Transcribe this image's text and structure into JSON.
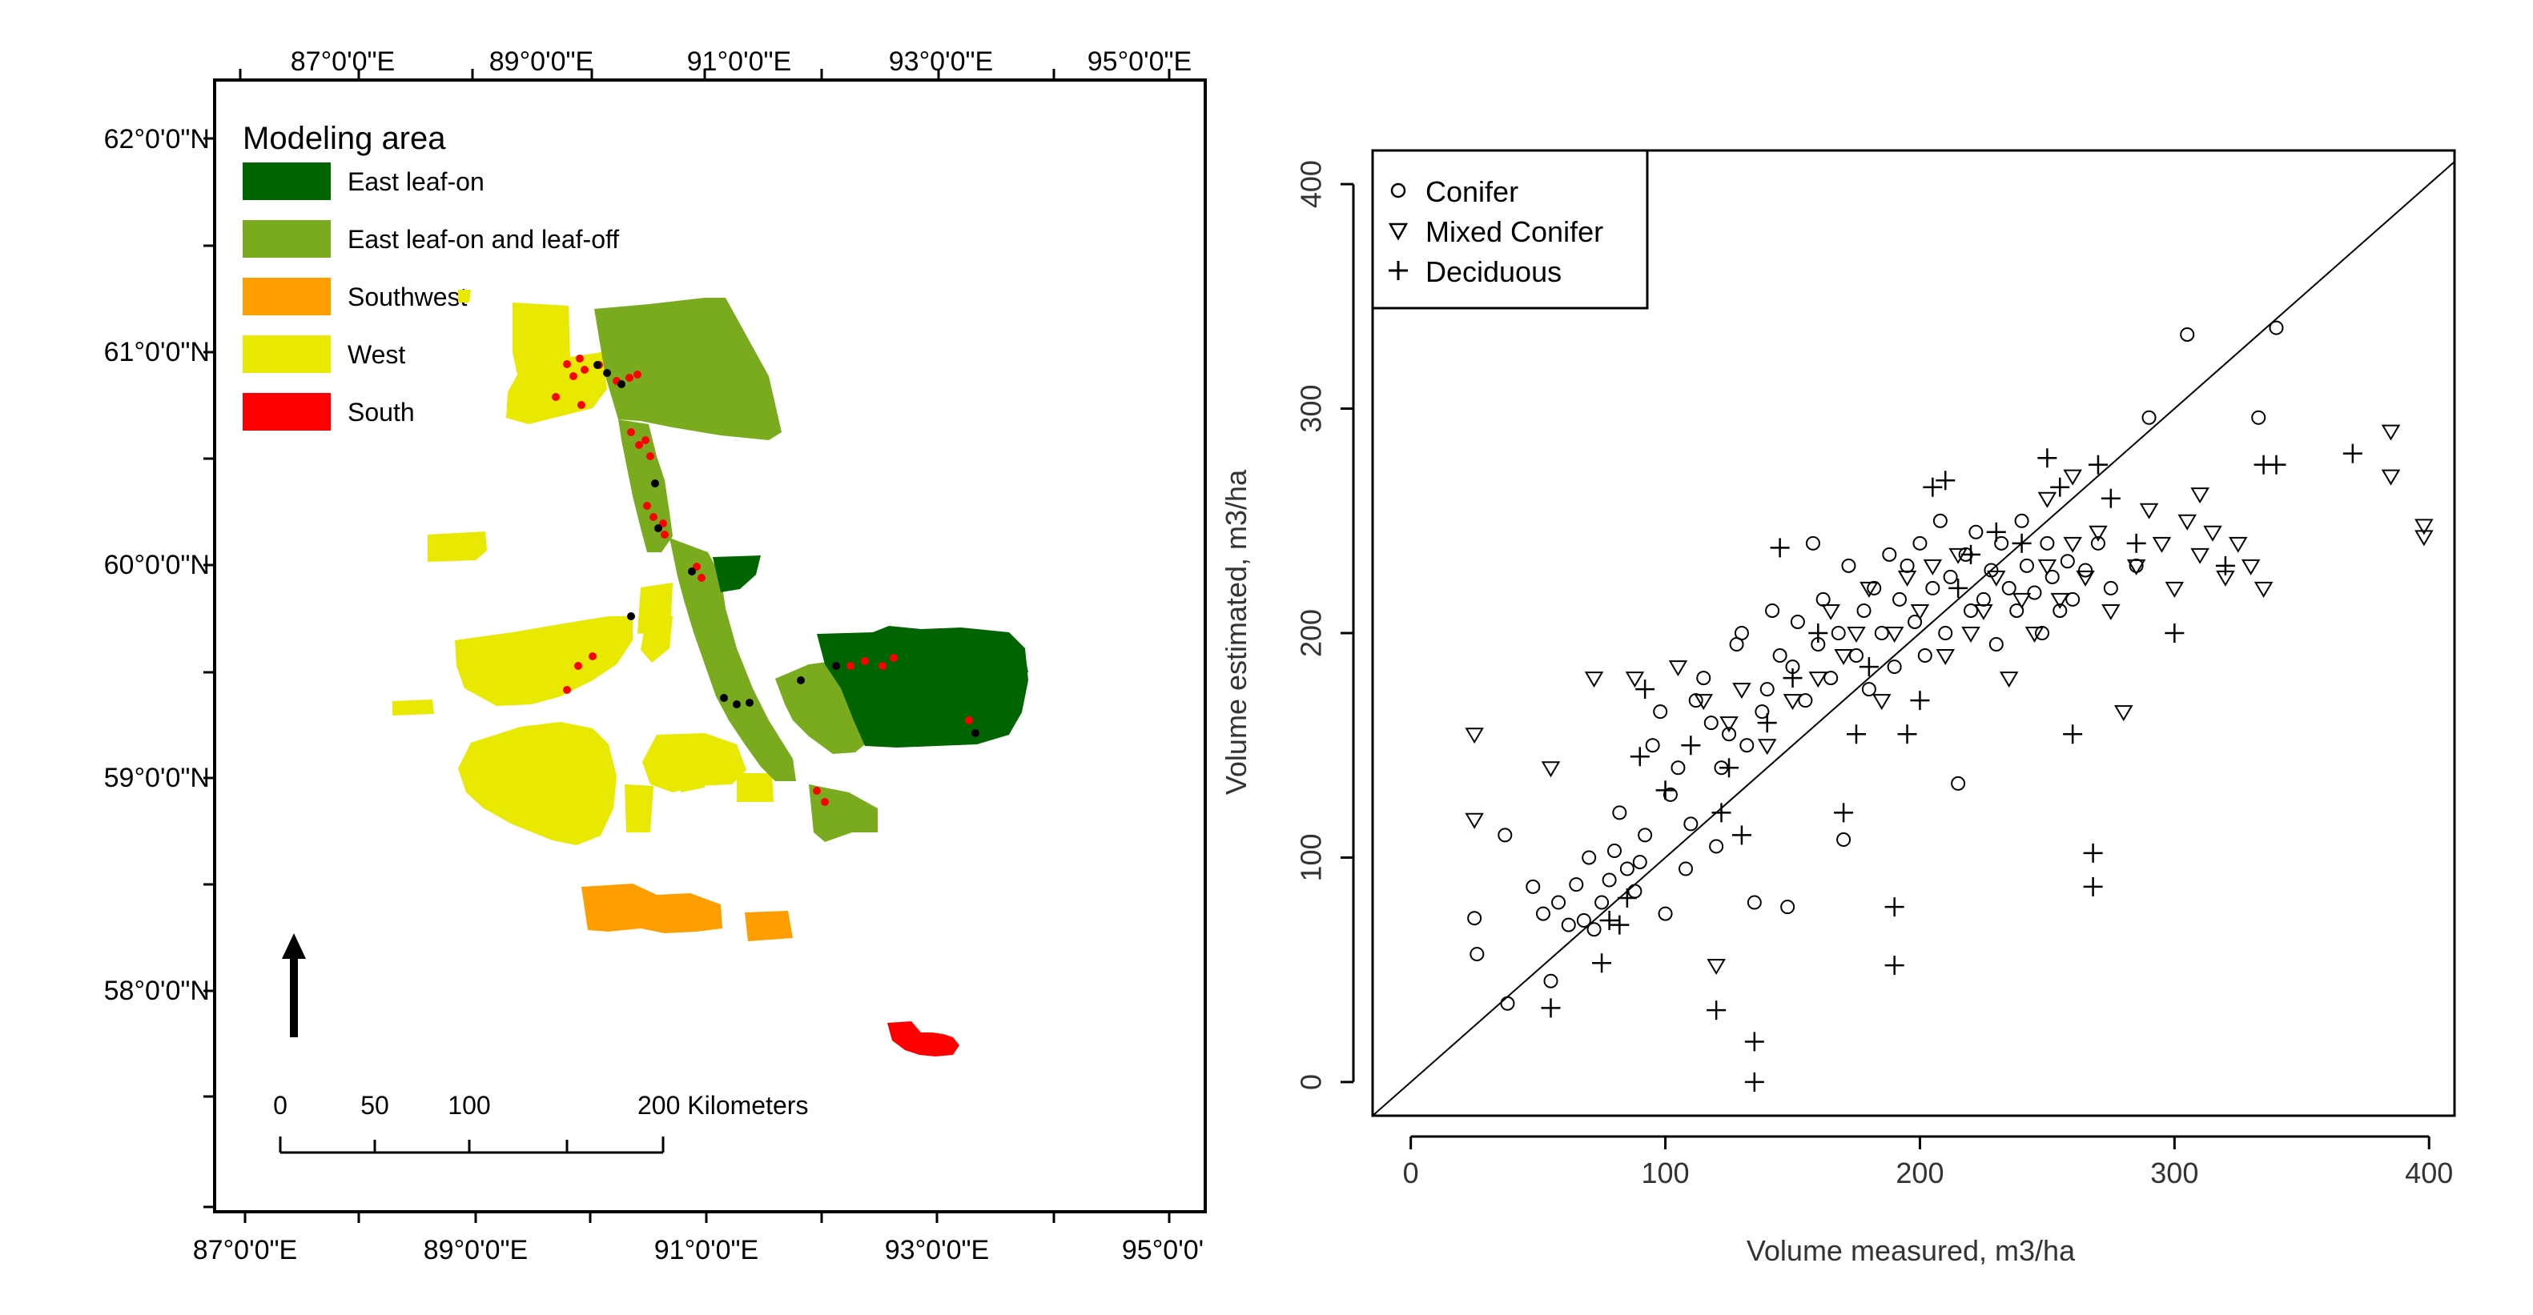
{
  "map": {
    "top_lon_labels": [
      "87°0'0\"E",
      "89°0'0\"E",
      "91°0'0\"E",
      "93°0'0\"E",
      "95°0'0\"E"
    ],
    "bottom_lon_labels": [
      "87°0'0\"E",
      "89°0'0\"E",
      "91°0'0\"E",
      "93°0'0\"E",
      "95°0'0'"
    ],
    "lat_labels": [
      "62°0'0\"N",
      "61°0'0\"N",
      "60°0'0\"N",
      "59°0'0\"N",
      "58°0'0\"N"
    ],
    "legend": {
      "title": "Modeling area",
      "items": [
        {
          "label": "East leaf-on",
          "color": "#006400"
        },
        {
          "label": "East leaf-on and leaf-off",
          "color": "#7aab1e"
        },
        {
          "label": "Southwest",
          "color": "#ff9e00"
        },
        {
          "label": "West",
          "color": "#e8e800"
        },
        {
          "label": "South",
          "color": "#ff0000"
        }
      ]
    },
    "scalebar": {
      "labels": [
        "0",
        "50",
        "100",
        "200 Kilometers"
      ]
    },
    "north_arrow": "north-arrow-icon"
  },
  "chart_data": {
    "type": "scatter",
    "xlabel": "Volume measured, m3/ha",
    "ylabel": "Volume estimated, m3/ha",
    "xlim": [
      -15,
      410
    ],
    "ylim": [
      -15,
      415
    ],
    "xticks": [
      0,
      100,
      200,
      300,
      400
    ],
    "yticks": [
      0,
      100,
      200,
      300,
      400
    ],
    "one_to_one_line": true,
    "legend_position": "top-left",
    "series": [
      {
        "name": "Conifer",
        "marker": "circle",
        "points": [
          [
            25,
            73
          ],
          [
            26,
            57
          ],
          [
            38,
            35
          ],
          [
            37,
            110
          ],
          [
            48,
            87
          ],
          [
            52,
            75
          ],
          [
            55,
            45
          ],
          [
            58,
            80
          ],
          [
            62,
            70
          ],
          [
            65,
            88
          ],
          [
            68,
            72
          ],
          [
            70,
            100
          ],
          [
            72,
            68
          ],
          [
            75,
            80
          ],
          [
            78,
            90
          ],
          [
            80,
            103
          ],
          [
            82,
            120
          ],
          [
            85,
            95
          ],
          [
            88,
            85
          ],
          [
            90,
            98
          ],
          [
            92,
            110
          ],
          [
            95,
            150
          ],
          [
            98,
            165
          ],
          [
            100,
            75
          ],
          [
            102,
            128
          ],
          [
            105,
            140
          ],
          [
            108,
            95
          ],
          [
            110,
            115
          ],
          [
            112,
            170
          ],
          [
            115,
            180
          ],
          [
            118,
            160
          ],
          [
            120,
            105
          ],
          [
            122,
            140
          ],
          [
            125,
            155
          ],
          [
            128,
            195
          ],
          [
            130,
            200
          ],
          [
            132,
            150
          ],
          [
            135,
            80
          ],
          [
            138,
            165
          ],
          [
            140,
            175
          ],
          [
            142,
            210
          ],
          [
            145,
            190
          ],
          [
            148,
            78
          ],
          [
            150,
            185
          ],
          [
            152,
            205
          ],
          [
            155,
            170
          ],
          [
            158,
            240
          ],
          [
            160,
            195
          ],
          [
            162,
            215
          ],
          [
            165,
            180
          ],
          [
            168,
            200
          ],
          [
            170,
            108
          ],
          [
            172,
            230
          ],
          [
            175,
            190
          ],
          [
            178,
            210
          ],
          [
            180,
            175
          ],
          [
            182,
            220
          ],
          [
            185,
            200
          ],
          [
            188,
            235
          ],
          [
            190,
            185
          ],
          [
            192,
            215
          ],
          [
            195,
            230
          ],
          [
            198,
            205
          ],
          [
            200,
            240
          ],
          [
            202,
            190
          ],
          [
            205,
            220
          ],
          [
            208,
            250
          ],
          [
            210,
            200
          ],
          [
            212,
            225
          ],
          [
            215,
            133
          ],
          [
            218,
            235
          ],
          [
            220,
            210
          ],
          [
            222,
            245
          ],
          [
            225,
            215
          ],
          [
            228,
            228
          ],
          [
            230,
            195
          ],
          [
            232,
            240
          ],
          [
            235,
            220
          ],
          [
            238,
            210
          ],
          [
            240,
            250
          ],
          [
            242,
            230
          ],
          [
            245,
            218
          ],
          [
            248,
            200
          ],
          [
            250,
            240
          ],
          [
            252,
            225
          ],
          [
            255,
            210
          ],
          [
            258,
            232
          ],
          [
            260,
            215
          ],
          [
            265,
            228
          ],
          [
            270,
            240
          ],
          [
            275,
            220
          ],
          [
            285,
            230
          ],
          [
            290,
            296
          ],
          [
            305,
            333
          ],
          [
            333,
            296
          ],
          [
            340,
            336
          ]
        ]
      },
      {
        "name": "Mixed Conifer",
        "marker": "triangle-down",
        "points": [
          [
            25,
            155
          ],
          [
            25,
            117
          ],
          [
            55,
            140
          ],
          [
            72,
            180
          ],
          [
            88,
            180
          ],
          [
            105,
            185
          ],
          [
            115,
            170
          ],
          [
            125,
            160
          ],
          [
            130,
            175
          ],
          [
            140,
            150
          ],
          [
            150,
            170
          ],
          [
            160,
            180
          ],
          [
            165,
            210
          ],
          [
            170,
            190
          ],
          [
            175,
            200
          ],
          [
            180,
            220
          ],
          [
            185,
            170
          ],
          [
            190,
            200
          ],
          [
            195,
            225
          ],
          [
            200,
            210
          ],
          [
            205,
            230
          ],
          [
            210,
            190
          ],
          [
            215,
            235
          ],
          [
            220,
            200
          ],
          [
            225,
            210
          ],
          [
            230,
            225
          ],
          [
            235,
            180
          ],
          [
            240,
            215
          ],
          [
            245,
            200
          ],
          [
            250,
            230
          ],
          [
            255,
            215
          ],
          [
            260,
            240
          ],
          [
            265,
            225
          ],
          [
            270,
            245
          ],
          [
            275,
            210
          ],
          [
            280,
            165
          ],
          [
            285,
            230
          ],
          [
            290,
            255
          ],
          [
            295,
            240
          ],
          [
            300,
            220
          ],
          [
            305,
            250
          ],
          [
            310,
            235
          ],
          [
            315,
            245
          ],
          [
            320,
            225
          ],
          [
            325,
            240
          ],
          [
            330,
            230
          ],
          [
            335,
            220
          ],
          [
            120,
            52
          ],
          [
            385,
            290
          ],
          [
            385,
            270
          ],
          [
            398,
            248
          ],
          [
            398,
            243
          ],
          [
            310,
            262
          ],
          [
            260,
            270
          ],
          [
            250,
            260
          ]
        ]
      },
      {
        "name": "Deciduous",
        "marker": "plus",
        "points": [
          [
            55,
            33
          ],
          [
            75,
            53
          ],
          [
            78,
            72
          ],
          [
            82,
            70
          ],
          [
            85,
            82
          ],
          [
            90,
            145
          ],
          [
            92,
            175
          ],
          [
            100,
            130
          ],
          [
            110,
            150
          ],
          [
            120,
            32
          ],
          [
            122,
            120
          ],
          [
            125,
            140
          ],
          [
            130,
            110
          ],
          [
            135,
            18
          ],
          [
            135,
            0
          ],
          [
            140,
            160
          ],
          [
            145,
            238
          ],
          [
            150,
            180
          ],
          [
            160,
            200
          ],
          [
            170,
            120
          ],
          [
            175,
            155
          ],
          [
            180,
            185
          ],
          [
            190,
            78
          ],
          [
            190,
            52
          ],
          [
            195,
            155
          ],
          [
            200,
            170
          ],
          [
            205,
            265
          ],
          [
            210,
            268
          ],
          [
            215,
            220
          ],
          [
            220,
            235
          ],
          [
            230,
            245
          ],
          [
            240,
            240
          ],
          [
            250,
            278
          ],
          [
            255,
            265
          ],
          [
            260,
            155
          ],
          [
            268,
            102
          ],
          [
            268,
            87
          ],
          [
            270,
            275
          ],
          [
            275,
            260
          ],
          [
            285,
            240
          ],
          [
            335,
            275
          ],
          [
            340,
            275
          ],
          [
            370,
            280
          ],
          [
            300,
            200
          ],
          [
            320,
            230
          ]
        ]
      }
    ]
  }
}
